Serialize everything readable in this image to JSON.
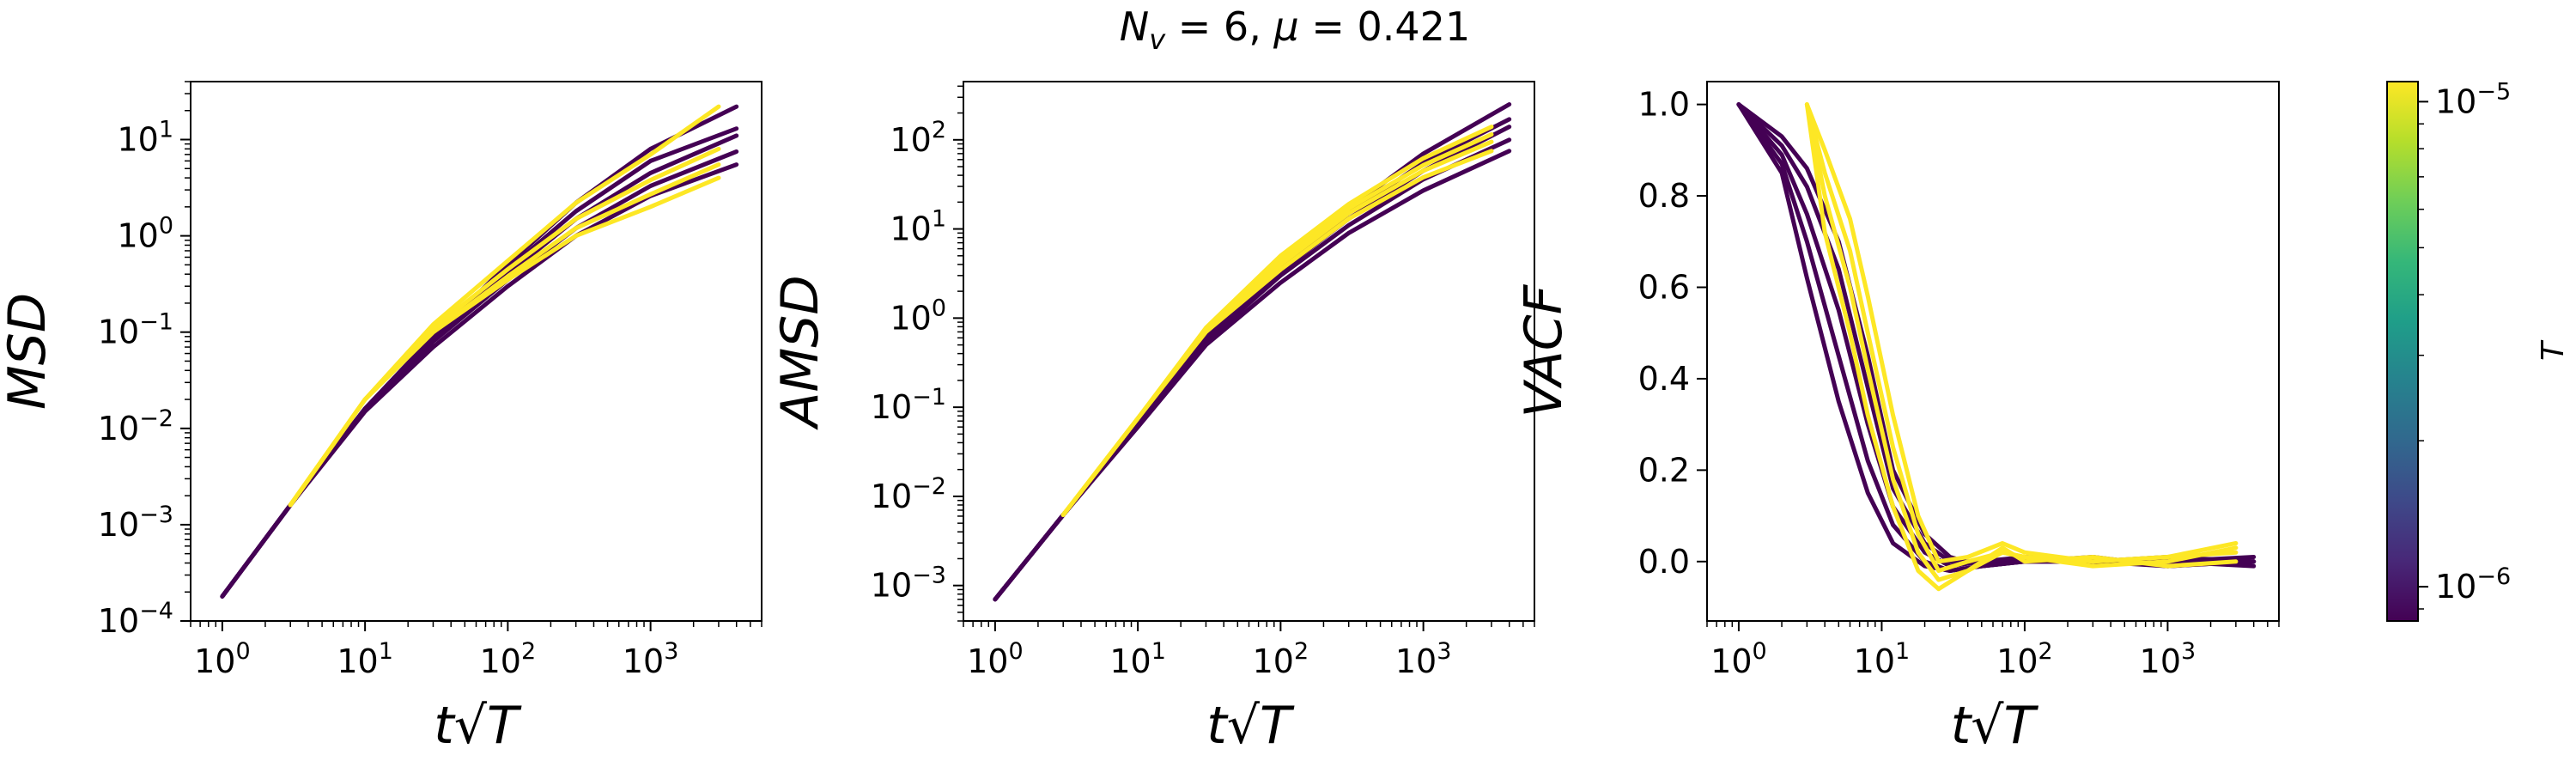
{
  "figure": {
    "title": "N_v = 6, μ = 0.421"
  },
  "colorbar": {
    "label": "T",
    "scale": "log",
    "range": [
      8.5e-07,
      1.1e-05
    ],
    "ticks": [
      {
        "value": 1e-05,
        "mant": "10",
        "exp": "−5"
      },
      {
        "value": 1e-06,
        "mant": "10",
        "exp": "−6"
      }
    ],
    "colormap": "viridis",
    "colormap_stops": [
      "#440154",
      "#482878",
      "#3e4989",
      "#31688e",
      "#26828e",
      "#1f9e89",
      "#35b779",
      "#6ece58",
      "#b5de2b",
      "#fde725"
    ]
  },
  "chart_data": [
    {
      "type": "line",
      "id": "msd",
      "ylabel": "MSD",
      "xlabel": "t√T",
      "xscale": "log",
      "yscale": "log",
      "xlim": [
        0.6,
        6000
      ],
      "ylim": [
        0.0001,
        40
      ],
      "xticks": [
        {
          "value": 1,
          "mant": "10",
          "exp": "0"
        },
        {
          "value": 10,
          "mant": "10",
          "exp": "1"
        },
        {
          "value": 100,
          "mant": "10",
          "exp": "2"
        },
        {
          "value": 1000,
          "mant": "10",
          "exp": "3"
        }
      ],
      "yticks": [
        {
          "value": 0.0001,
          "mant": "10",
          "exp": "−4"
        },
        {
          "value": 0.001,
          "mant": "10",
          "exp": "−3"
        },
        {
          "value": 0.01,
          "mant": "10",
          "exp": "−2"
        },
        {
          "value": 0.1,
          "mant": "10",
          "exp": "−1"
        },
        {
          "value": 1,
          "mant": "10",
          "exp": "0"
        },
        {
          "value": 10,
          "mant": "10",
          "exp": "1"
        }
      ],
      "grid": false,
      "series": [
        {
          "color": "#440154",
          "x": [
            1,
            3,
            10,
            30,
            100,
            300,
            1000,
            4000
          ],
          "y": [
            0.00018,
            0.0016,
            0.015,
            0.07,
            0.3,
            1.0,
            2.6,
            5.5
          ]
        },
        {
          "color": "#440154",
          "x": [
            1,
            3,
            10,
            30,
            100,
            300,
            1000,
            4000
          ],
          "y": [
            0.00018,
            0.0016,
            0.016,
            0.08,
            0.35,
            1.2,
            3.3,
            7.5
          ]
        },
        {
          "color": "#440154",
          "x": [
            1,
            3,
            10,
            30,
            100,
            300,
            1000,
            4000
          ],
          "y": [
            0.00018,
            0.0016,
            0.016,
            0.085,
            0.4,
            1.5,
            4.5,
            11
          ]
        },
        {
          "color": "#440154",
          "x": [
            1,
            3,
            10,
            30,
            100,
            300,
            1000,
            4000
          ],
          "y": [
            0.00018,
            0.0016,
            0.016,
            0.09,
            0.45,
            1.8,
            6,
            13
          ]
        },
        {
          "color": "#440154",
          "x": [
            1,
            3,
            10,
            30,
            100,
            300,
            1000,
            4000
          ],
          "y": [
            0.00018,
            0.0016,
            0.016,
            0.09,
            0.5,
            2.2,
            8,
            22
          ]
        },
        {
          "color": "#fde725",
          "x": [
            3,
            10,
            30,
            100,
            300,
            1000,
            3000
          ],
          "y": [
            0.0016,
            0.02,
            0.1,
            0.35,
            1.0,
            2.0,
            4.0
          ]
        },
        {
          "color": "#fde725",
          "x": [
            3,
            10,
            30,
            100,
            300,
            1000,
            3000
          ],
          "y": [
            0.0016,
            0.02,
            0.1,
            0.38,
            1.2,
            2.7,
            5.5
          ]
        },
        {
          "color": "#fde725",
          "x": [
            3,
            10,
            30,
            100,
            300,
            1000,
            3000
          ],
          "y": [
            0.0016,
            0.02,
            0.11,
            0.45,
            1.5,
            3.8,
            8
          ]
        },
        {
          "color": "#fde725",
          "x": [
            3,
            10,
            30,
            100,
            300,
            1000,
            3000
          ],
          "y": [
            0.0016,
            0.02,
            0.12,
            0.55,
            2.2,
            7,
            22
          ]
        }
      ]
    },
    {
      "type": "line",
      "id": "amsd",
      "ylabel": "AMSD",
      "xlabel": "t√T",
      "xscale": "log",
      "yscale": "log",
      "xlim": [
        0.6,
        6000
      ],
      "ylim": [
        0.0004,
        450
      ],
      "xticks": [
        {
          "value": 1,
          "mant": "10",
          "exp": "0"
        },
        {
          "value": 10,
          "mant": "10",
          "exp": "1"
        },
        {
          "value": 100,
          "mant": "10",
          "exp": "2"
        },
        {
          "value": 1000,
          "mant": "10",
          "exp": "3"
        }
      ],
      "yticks": [
        {
          "value": 0.001,
          "mant": "10",
          "exp": "−3"
        },
        {
          "value": 0.01,
          "mant": "10",
          "exp": "−2"
        },
        {
          "value": 0.1,
          "mant": "10",
          "exp": "−1"
        },
        {
          "value": 1,
          "mant": "10",
          "exp": "0"
        },
        {
          "value": 10,
          "mant": "10",
          "exp": "1"
        },
        {
          "value": 100,
          "mant": "10",
          "exp": "2"
        }
      ],
      "grid": false,
      "series": [
        {
          "color": "#440154",
          "x": [
            1,
            3,
            10,
            30,
            100,
            300,
            1000,
            4000
          ],
          "y": [
            0.0007,
            0.0062,
            0.06,
            0.5,
            2.5,
            9,
            27,
            75
          ]
        },
        {
          "color": "#440154",
          "x": [
            1,
            3,
            10,
            30,
            100,
            300,
            1000,
            4000
          ],
          "y": [
            0.0007,
            0.0062,
            0.065,
            0.55,
            3.0,
            11,
            36,
            100
          ]
        },
        {
          "color": "#440154",
          "x": [
            1,
            3,
            10,
            30,
            100,
            300,
            1000,
            4000
          ],
          "y": [
            0.0007,
            0.0062,
            0.065,
            0.6,
            3.4,
            13,
            45,
            140
          ]
        },
        {
          "color": "#440154",
          "x": [
            1,
            3,
            10,
            30,
            100,
            300,
            1000,
            4000
          ],
          "y": [
            0.0007,
            0.0062,
            0.065,
            0.62,
            3.8,
            15,
            55,
            170
          ]
        },
        {
          "color": "#440154",
          "x": [
            1,
            3,
            10,
            30,
            100,
            300,
            1000,
            4000
          ],
          "y": [
            0.0007,
            0.0062,
            0.065,
            0.65,
            4.2,
            17,
            70,
            250
          ]
        },
        {
          "color": "#fde725",
          "x": [
            3,
            10,
            30,
            100,
            300,
            1000,
            3000
          ],
          "y": [
            0.0062,
            0.075,
            0.7,
            3.5,
            13,
            38,
            75
          ]
        },
        {
          "color": "#fde725",
          "x": [
            3,
            10,
            30,
            100,
            300,
            1000,
            3000
          ],
          "y": [
            0.0062,
            0.075,
            0.72,
            4.0,
            15,
            45,
            95
          ]
        },
        {
          "color": "#fde725",
          "x": [
            3,
            10,
            30,
            100,
            300,
            1000,
            3000
          ],
          "y": [
            0.0062,
            0.075,
            0.75,
            4.5,
            17,
            52,
            115
          ]
        },
        {
          "color": "#fde725",
          "x": [
            3,
            10,
            30,
            100,
            300,
            1000,
            3000
          ],
          "y": [
            0.0062,
            0.075,
            0.78,
            5.0,
            19,
            62,
            140
          ]
        }
      ]
    },
    {
      "type": "line",
      "id": "vacf",
      "ylabel": "VACF",
      "xlabel": "t√T",
      "xscale": "log",
      "yscale": "linear",
      "xlim": [
        0.6,
        6000
      ],
      "ylim": [
        -0.13,
        1.05
      ],
      "xticks": [
        {
          "value": 1,
          "mant": "10",
          "exp": "0"
        },
        {
          "value": 10,
          "mant": "10",
          "exp": "1"
        },
        {
          "value": 100,
          "mant": "10",
          "exp": "2"
        },
        {
          "value": 1000,
          "mant": "10",
          "exp": "3"
        }
      ],
      "yticks": [
        {
          "value": 0,
          "text": "0.0"
        },
        {
          "value": 0.2,
          "text": "0.2"
        },
        {
          "value": 0.4,
          "text": "0.4"
        },
        {
          "value": 0.6,
          "text": "0.6"
        },
        {
          "value": 0.8,
          "text": "0.8"
        },
        {
          "value": 1.0,
          "text": "1.0"
        }
      ],
      "grid": false,
      "series": [
        {
          "color": "#440154",
          "x": [
            1,
            2,
            3,
            5,
            8,
            12,
            20,
            30,
            50,
            100,
            300,
            1000,
            4000
          ],
          "y": [
            1.0,
            0.85,
            0.62,
            0.35,
            0.15,
            0.04,
            -0.01,
            -0.02,
            -0.01,
            0.0,
            0.0,
            -0.01,
            0.0
          ]
        },
        {
          "color": "#440154",
          "x": [
            1,
            2,
            3,
            5,
            8,
            12,
            20,
            30,
            50,
            100,
            300,
            1000,
            4000
          ],
          "y": [
            1.0,
            0.87,
            0.7,
            0.45,
            0.22,
            0.08,
            0.0,
            -0.02,
            -0.01,
            0.0,
            0.0,
            0.0,
            0.01
          ]
        },
        {
          "color": "#440154",
          "x": [
            1,
            2,
            3,
            5,
            8,
            12,
            20,
            30,
            50,
            100,
            300,
            1000,
            4000
          ],
          "y": [
            1.0,
            0.89,
            0.76,
            0.55,
            0.3,
            0.12,
            0.02,
            -0.01,
            0.0,
            0.0,
            0.01,
            -0.01,
            0.0
          ]
        },
        {
          "color": "#440154",
          "x": [
            1,
            2,
            3,
            5,
            8,
            12,
            20,
            30,
            50,
            100,
            300,
            1000,
            4000
          ],
          "y": [
            1.0,
            0.91,
            0.82,
            0.64,
            0.38,
            0.16,
            0.04,
            0.0,
            0.0,
            0.01,
            0.0,
            0.0,
            -0.01
          ]
        },
        {
          "color": "#440154",
          "x": [
            1,
            2,
            3,
            5,
            8,
            12,
            20,
            30,
            50,
            100,
            300,
            1000,
            4000
          ],
          "y": [
            1.0,
            0.93,
            0.86,
            0.7,
            0.45,
            0.2,
            0.06,
            0.01,
            -0.01,
            0.0,
            0.0,
            0.01,
            0.0
          ]
        },
        {
          "color": "#fde725",
          "x": [
            3,
            4,
            6,
            8,
            12,
            18,
            25,
            40,
            70,
            100,
            300,
            1000,
            3000
          ],
          "y": [
            1.0,
            0.72,
            0.5,
            0.32,
            0.12,
            -0.02,
            -0.06,
            -0.02,
            0.02,
            0.01,
            0.0,
            0.01,
            0.02
          ]
        },
        {
          "color": "#fde725",
          "x": [
            3,
            4,
            6,
            8,
            12,
            18,
            25,
            40,
            70,
            100,
            300,
            1000,
            3000
          ],
          "y": [
            1.0,
            0.8,
            0.6,
            0.42,
            0.18,
            0.02,
            -0.04,
            -0.02,
            0.03,
            0.0,
            0.01,
            -0.01,
            0.0
          ]
        },
        {
          "color": "#fde725",
          "x": [
            3,
            4,
            6,
            8,
            12,
            18,
            25,
            40,
            70,
            100,
            300,
            1000,
            3000
          ],
          "y": [
            1.0,
            0.85,
            0.68,
            0.5,
            0.25,
            0.06,
            -0.02,
            0.0,
            0.02,
            0.01,
            -0.01,
            0.0,
            0.03
          ]
        },
        {
          "color": "#fde725",
          "x": [
            3,
            4,
            6,
            8,
            12,
            18,
            25,
            40,
            70,
            100,
            300,
            1000,
            3000
          ],
          "y": [
            1.0,
            0.9,
            0.75,
            0.58,
            0.32,
            0.1,
            0.0,
            0.01,
            0.04,
            0.02,
            0.0,
            0.01,
            0.04
          ]
        }
      ]
    }
  ]
}
